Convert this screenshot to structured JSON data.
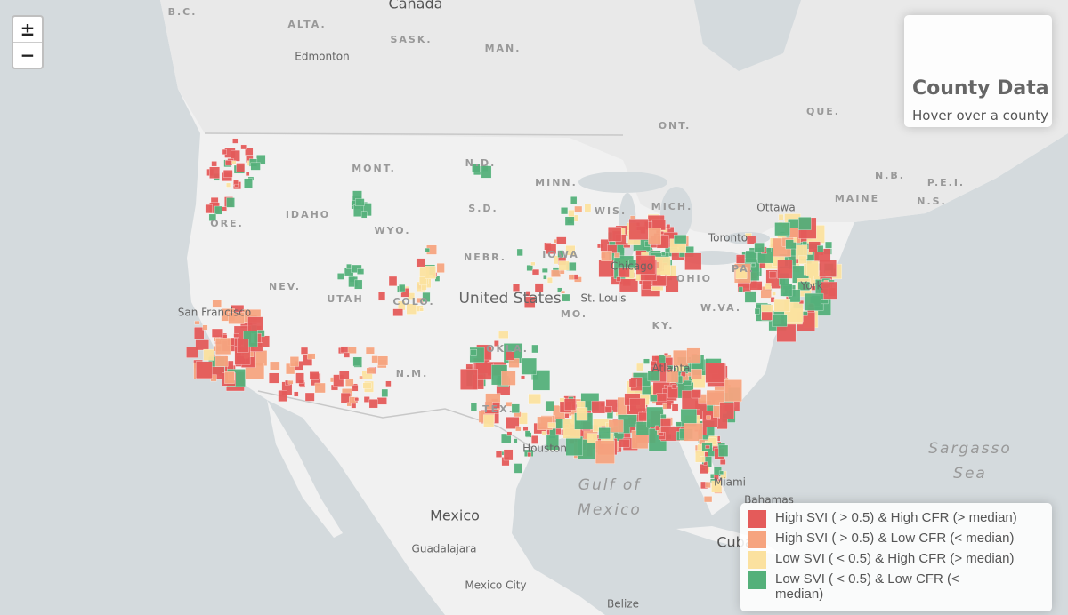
{
  "zoom_controls": {
    "zoom_in": "±",
    "zoom_out": "−"
  },
  "info_panel": {
    "title": "County Data",
    "hint": "Hover over a county"
  },
  "legend": {
    "items": [
      {
        "label": "High SVI ( > 0.5) & High CFR (> median)",
        "color": "#e45b5a"
      },
      {
        "label": "High SVI ( > 0.5) & Low CFR (< median)",
        "color": "#f6a47f"
      },
      {
        "label": "Low SVI ( < 0.5) & High CFR (> median)",
        "color": "#fbe19f"
      },
      {
        "label": "Low SVI ( < 0.5) & Low CFR (< median)",
        "color": "#54b07a"
      }
    ]
  },
  "map_labels": [
    "B.C.",
    "ALTA.",
    "SASK.",
    "MAN.",
    "Canada",
    "Edmonton",
    "ONT.",
    "QUE.",
    "N.B.",
    "P.E.I.",
    "N.S.",
    "MAINE",
    "MONT.",
    "N.D.",
    "MINN.",
    "S.D.",
    "WIS.",
    "MICH.",
    "IDAHO",
    "WYO.",
    "NEBR.",
    "IOWA",
    "NEV.",
    "UTAH",
    "COLO.",
    "United States",
    "St. Louis",
    "MO.",
    "KY.",
    "W.VA.",
    "Ottawa",
    "Toronto",
    "Chicago",
    "OHIO",
    "PA.",
    "York",
    "San Francisco",
    "N.M.",
    "OKLA.",
    "TEX.",
    "Houston",
    "Atlanta",
    "Miami",
    "Bahamas",
    "Cuba",
    "Gulf of",
    "Mexico",
    "Sargasso",
    "Sea",
    "Mexico",
    "Guadalajara",
    "Mexico City",
    "Belize",
    "ORE."
  ]
}
